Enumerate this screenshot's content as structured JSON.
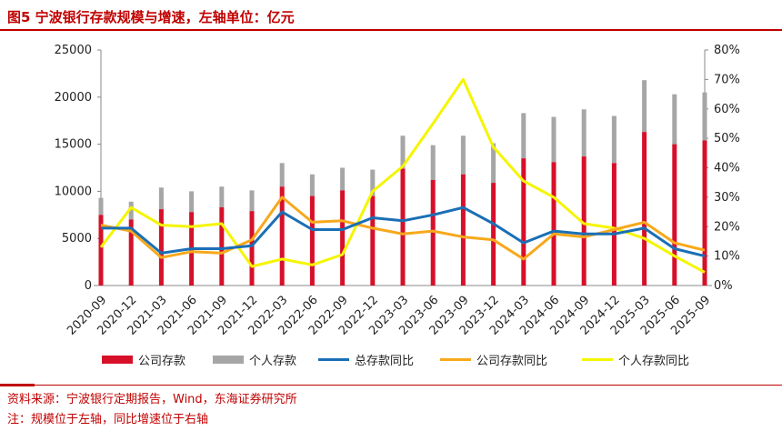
{
  "header": {
    "title": "图5  宁波银行存款规模与增速，左轴单位：亿元"
  },
  "footer": {
    "source": "资料来源：宁波银行定期报告，Wind，东海证券研究所",
    "note": "注：规模位于左轴，同比增速位于右轴"
  },
  "colors": {
    "corporate": "#d7102a",
    "personal": "#a6a6a6",
    "total_yoy": "#1a6fb5",
    "corporate_yoy": "#f7a81b",
    "personal_yoy": "#f5f500",
    "accent": "#c00000"
  },
  "chart_data": {
    "type": "bar+line",
    "categories": [
      "2020-09",
      "2020-12",
      "2021-03",
      "2021-06",
      "2021-09",
      "2021-12",
      "2022-03",
      "2022-06",
      "2022-09",
      "2022-12",
      "2023-03",
      "2023-06",
      "2023-09",
      "2023-12",
      "2024-03",
      "2024-06",
      "2024-09",
      "2024-12",
      "2025-03",
      "2025-06",
      "2025-09"
    ],
    "bar_series": [
      {
        "name": "公司存款",
        "axis": "left",
        "values": [
          7500,
          7000,
          8100,
          7800,
          8300,
          7900,
          10500,
          9500,
          10100,
          9500,
          12400,
          11200,
          11800,
          10900,
          13500,
          13100,
          13700,
          13000,
          16300,
          15000,
          15400
        ]
      },
      {
        "name": "个人存款",
        "axis": "left",
        "stack_totals": [
          9300,
          8900,
          10400,
          10000,
          10500,
          10100,
          13000,
          11800,
          12500,
          12300,
          15900,
          14900,
          15900,
          15100,
          18300,
          17900,
          18700,
          18000,
          21800,
          20300,
          20500
        ]
      }
    ],
    "line_series": [
      {
        "name": "总存款同比",
        "axis": "right",
        "values": [
          19.5,
          19.5,
          11.0,
          12.5,
          12.5,
          13.5,
          25.0,
          19.0,
          19.0,
          23.0,
          22.0,
          24.0,
          26.5,
          21.0,
          14.5,
          18.5,
          17.5,
          17.5,
          19.5,
          12.5,
          10.0
        ]
      },
      {
        "name": "公司存款同比",
        "axis": "right",
        "values": [
          20.5,
          18.5,
          9.5,
          11.5,
          11.0,
          15.5,
          30.0,
          21.5,
          22.0,
          19.5,
          17.5,
          18.5,
          16.5,
          15.5,
          9.0,
          17.5,
          16.5,
          19.0,
          21.5,
          14.5,
          12.0
        ]
      },
      {
        "name": "个人存款同比",
        "axis": "right",
        "values": [
          13.0,
          26.5,
          20.5,
          20.0,
          21.0,
          6.5,
          9.0,
          7.0,
          10.5,
          32.0,
          40.5,
          55.0,
          70.0,
          47.0,
          35.5,
          30.0,
          21.0,
          19.5,
          16.0,
          10.0,
          4.5
        ]
      }
    ],
    "y_left": {
      "min": 0,
      "max": 25000,
      "ticks": [
        "0",
        "5000",
        "10000",
        "15000",
        "20000",
        "25000"
      ]
    },
    "y_right": {
      "min": 0,
      "max": 80,
      "ticks": [
        "0%",
        "10%",
        "20%",
        "30%",
        "40%",
        "50%",
        "60%",
        "70%",
        "80%"
      ]
    },
    "legend": [
      "公司存款",
      "个人存款",
      "总存款同比",
      "公司存款同比",
      "个人存款同比"
    ],
    "grid": false
  }
}
